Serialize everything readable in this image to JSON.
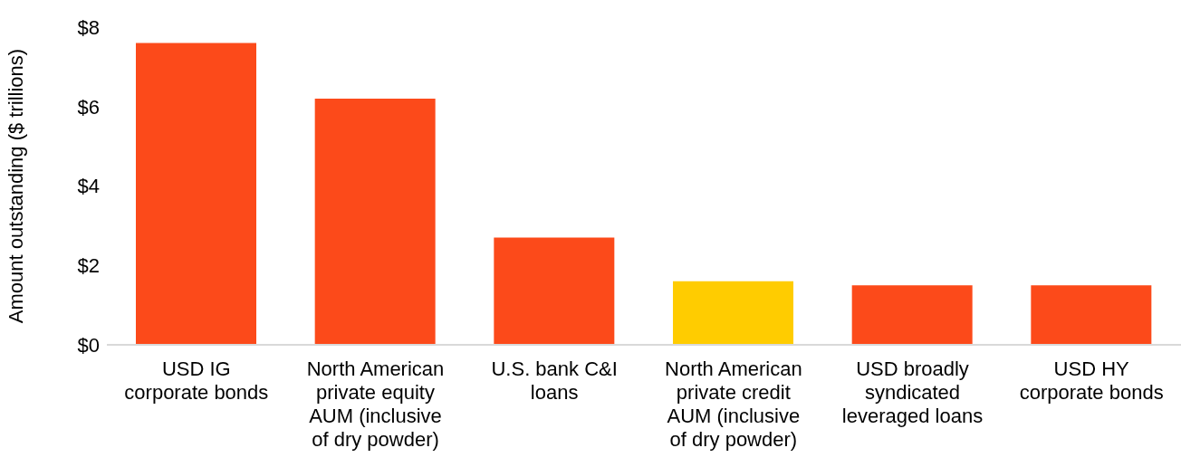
{
  "chart_data": {
    "type": "bar",
    "ylabel": "Amount outstanding ($ trillions)",
    "categories": [
      "USD IG\ncorporate bonds",
      "North American\nprivate equity\nAUM (inclusive\nof dry powder)",
      "U.S. bank C&I\nloans",
      "North American\nprivate credit\nAUM (inclusive\nof dry powder)",
      "USD broadly\nsyndicated\nleveraged loans",
      "USD HY\ncorporate bonds"
    ],
    "values": [
      7.6,
      6.2,
      2.7,
      1.6,
      1.5,
      1.5
    ],
    "colors": [
      "#fc4a1a",
      "#fc4a1a",
      "#fc4a1a",
      "#ffcc00",
      "#fc4a1a",
      "#fc4a1a"
    ],
    "ylim": [
      0,
      8
    ],
    "yticks": [
      {
        "value": 0,
        "label": "$0"
      },
      {
        "value": 2,
        "label": "$2"
      },
      {
        "value": 4,
        "label": "$4"
      },
      {
        "value": 6,
        "label": "$6"
      },
      {
        "value": 8,
        "label": "$8"
      }
    ],
    "grid": false,
    "legend": false
  }
}
